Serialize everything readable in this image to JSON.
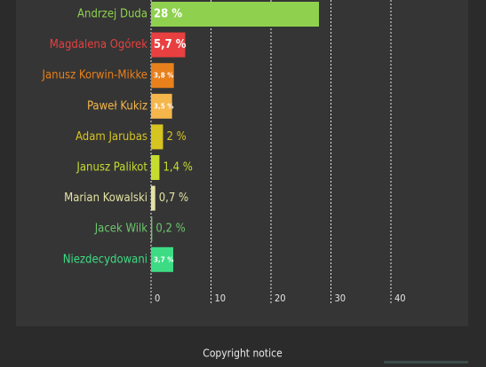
{
  "chart_data": {
    "type": "hbar",
    "categories": [
      "Andrzej Duda",
      "Magdalena Ogórek",
      "Janusz Korwin-Mikke",
      "Paweł Kukiz",
      "Adam Jarubas",
      "Janusz Palikot",
      "Marian Kowalski",
      "Jacek Wilk",
      "Niezdecydowani"
    ],
    "values": [
      28,
      5.7,
      3.8,
      3.5,
      2,
      1.4,
      0.7,
      0.2,
      3.7
    ],
    "value_labels": [
      "28 %",
      "5,7 %",
      "3,8 %",
      "3,5 %",
      "2 %",
      "1,4 %",
      "0,7 %",
      "0,2 %",
      "3,7 %"
    ],
    "colors": [
      "#8fd14f",
      "#e84040",
      "#e8801c",
      "#f5b64c",
      "#d6c420",
      "#c6dc2e",
      "#e2e2a4",
      "#6cc66c",
      "#3ddc84"
    ],
    "xlim": [
      0,
      48
    ],
    "xticks": [
      0,
      10,
      20,
      30,
      40
    ],
    "grid": true
  },
  "footer": "Copyright notice"
}
